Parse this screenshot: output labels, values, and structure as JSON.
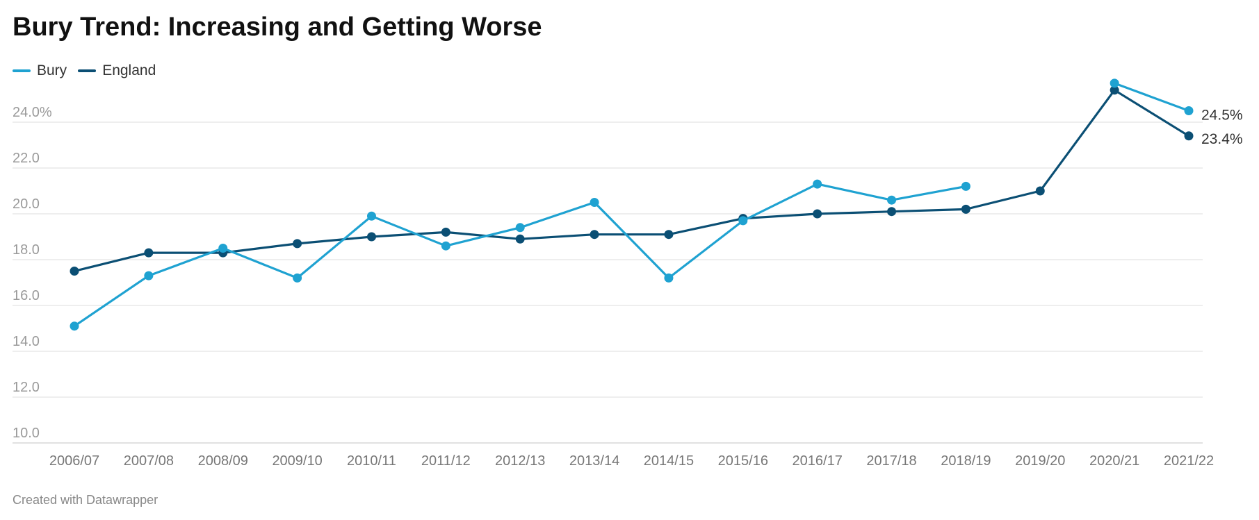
{
  "title": "Bury Trend: Increasing and Getting Worse",
  "footer": "Created with Datawrapper",
  "chart_data": {
    "type": "line",
    "title": "Bury Trend: Increasing and Getting Worse",
    "xlabel": "",
    "ylabel": "",
    "categories": [
      "2006/07",
      "2007/08",
      "2008/09",
      "2009/10",
      "2010/11",
      "2011/12",
      "2012/13",
      "2013/14",
      "2014/15",
      "2015/16",
      "2016/17",
      "2017/18",
      "2018/19",
      "2019/20",
      "2020/21",
      "2021/22"
    ],
    "ylim": [
      10,
      26
    ],
    "yticks": [
      10,
      12,
      14,
      16,
      18,
      20,
      22,
      24
    ],
    "ytick_labels": [
      "10.0",
      "12.0",
      "14.0",
      "16.0",
      "18.0",
      "20.0",
      "22.0",
      "24.0%"
    ],
    "grid": true,
    "legend_position": "top-left",
    "series": [
      {
        "name": "Bury",
        "color": "#1fa2d1",
        "values": [
          15.1,
          17.3,
          18.5,
          17.2,
          19.9,
          18.6,
          19.4,
          20.5,
          17.2,
          19.7,
          21.3,
          20.6,
          21.2,
          null,
          25.7,
          24.5
        ],
        "end_label": "24.5%"
      },
      {
        "name": "England",
        "color": "#0b4f74",
        "values": [
          17.5,
          18.3,
          18.3,
          18.7,
          19.0,
          19.2,
          18.9,
          19.1,
          19.1,
          19.8,
          20.0,
          20.1,
          20.2,
          21.0,
          25.4,
          23.4
        ],
        "end_label": "23.4%"
      }
    ]
  }
}
